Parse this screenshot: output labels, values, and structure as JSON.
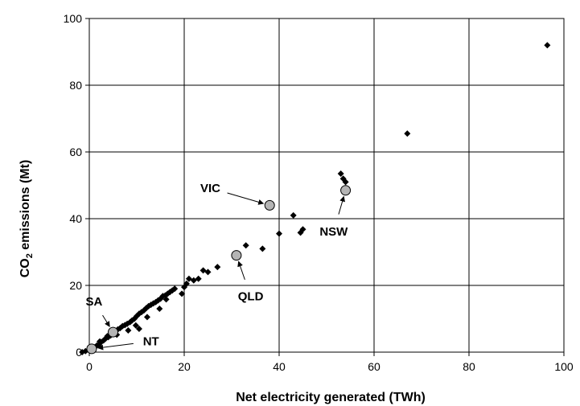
{
  "chart_data": {
    "type": "scatter",
    "title": "",
    "xlabel": "Net electricity generated (TWh)",
    "ylabel_main": "CO",
    "ylabel_sub": "2",
    "ylabel_rest": " emissions (Mt)",
    "xlim": [
      0,
      100
    ],
    "ylim": [
      0,
      100
    ],
    "xticks": [
      0,
      20,
      40,
      60,
      80,
      100
    ],
    "yticks": [
      0,
      20,
      40,
      60,
      80,
      100
    ],
    "grid": true,
    "colors": {
      "point": "#000000",
      "state_fill": "#b4b4b4",
      "grid": "#000000"
    },
    "series": [
      {
        "marker": "diamond",
        "x": [
          -1.5,
          -0.8,
          0.3,
          0.8,
          1.2,
          1.6,
          2.0,
          2.5,
          3.0,
          3.4,
          4.0,
          4.5,
          5.0,
          5.5,
          6.0,
          6.5,
          7.0,
          7.5,
          8.0,
          8.6,
          9.0,
          9.5,
          10.0,
          10.5,
          11.0,
          11.5,
          12.0,
          12.5,
          13.0,
          13.5,
          14.0,
          14.5,
          15.0,
          15.5,
          16.0,
          16.5,
          17.0,
          17.5,
          18.0,
          2.2,
          3.8,
          5.8,
          8.2,
          9.8,
          10.5,
          12.2,
          14.8,
          16.2,
          19.5,
          20.0,
          20.5,
          21.0,
          22.0,
          23.0,
          24.0,
          25.0,
          27.0,
          33.0,
          36.5,
          40.0,
          43.0,
          44.5,
          45.0,
          53.0,
          53.5,
          54.0,
          67.0,
          96.5
        ],
        "y": [
          0.0,
          0.3,
          0.6,
          1.0,
          1.5,
          2.0,
          2.2,
          3.0,
          3.5,
          4.0,
          4.5,
          5.0,
          5.8,
          6.3,
          6.8,
          7.2,
          7.8,
          8.1,
          8.5,
          9.0,
          9.5,
          10.0,
          10.8,
          11.5,
          12.0,
          12.5,
          13.2,
          13.8,
          14.2,
          14.6,
          15.0,
          15.5,
          16.0,
          16.8,
          17.0,
          17.5,
          18.0,
          18.5,
          19.0,
          3.2,
          4.8,
          5.2,
          6.5,
          8.0,
          7.0,
          10.5,
          13.0,
          15.8,
          17.5,
          19.5,
          20.5,
          22.0,
          21.5,
          22.0,
          24.5,
          24.0,
          25.5,
          32.0,
          31.0,
          35.5,
          41.0,
          35.8,
          36.8,
          53.5,
          52.0,
          51.0,
          65.5,
          92.0
        ]
      },
      {
        "marker": "circle",
        "labels": [
          "VIC",
          "NSW",
          "QLD",
          "SA",
          "NT"
        ],
        "x": [
          38.0,
          54.0,
          31.0,
          5.0,
          0.5
        ],
        "y": [
          44.0,
          48.5,
          29.0,
          6.0,
          1.0
        ]
      }
    ],
    "annotations": [
      {
        "label": "VIC",
        "target": [
          38.0,
          44.0
        ],
        "text_at": [
          25.5,
          48.0
        ]
      },
      {
        "label": "NSW",
        "target": [
          54.0,
          48.5
        ],
        "text_at": [
          51.5,
          35.0
        ]
      },
      {
        "label": "QLD",
        "target": [
          31.0,
          29.0
        ],
        "text_at": [
          34.0,
          15.5
        ]
      },
      {
        "label": "SA",
        "target": [
          5.0,
          6.0
        ],
        "text_at": [
          1.0,
          14.0
        ]
      },
      {
        "label": "NT",
        "target": [
          0.5,
          1.0
        ],
        "text_at": [
          13.0,
          2.0
        ]
      }
    ]
  }
}
